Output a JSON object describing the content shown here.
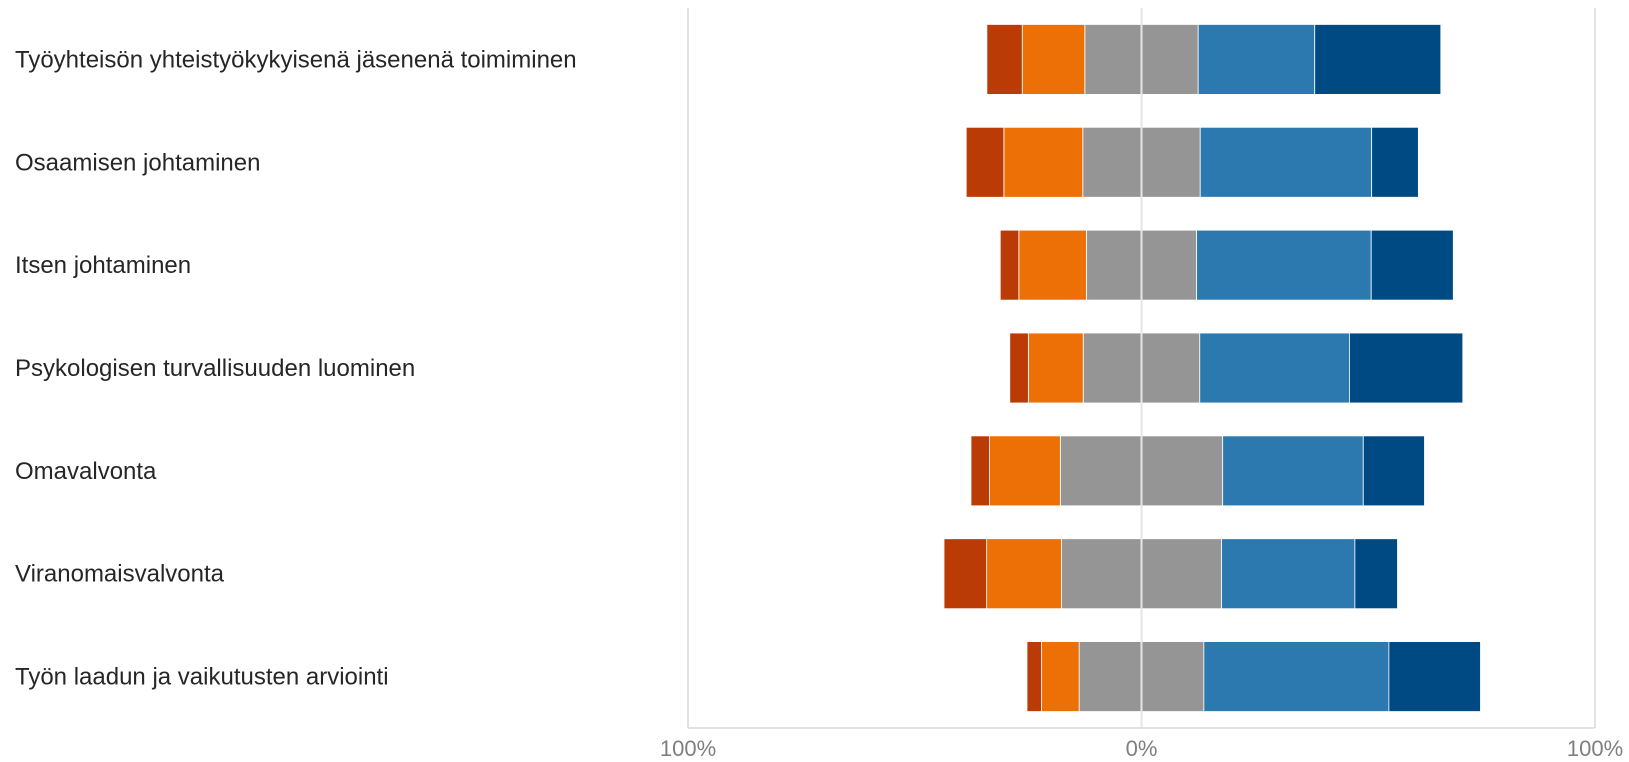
{
  "chart_data": {
    "type": "bar",
    "orientation": "horizontal",
    "stacking": "diverging",
    "categories": [
      "Työyhteisön yhteistyökykyisenä jäsenenä toimiminen",
      "Osaamisen johtaminen",
      "Itsen johtaminen",
      "Psykologisen turvallisuuden luominen",
      "Omavalvonta",
      "Viranomaisvalvonta",
      "Työn laadun ja vaikutusten arviointi"
    ],
    "series": [
      {
        "values": [
          7.8,
          8.3,
          4.1,
          4.1,
          4.1,
          9.4,
          3.2
        ],
        "color": "#bb3b06"
      },
      {
        "values": [
          13.8,
          17.4,
          14.9,
          12.1,
          15.6,
          16.5,
          8.3
        ],
        "color": "#ed7007"
      },
      {
        "values": [
          25.0,
          25.9,
          24.3,
          25.7,
          35.8,
          35.3,
          27.5
        ],
        "color": "#959595"
      },
      {
        "values": [
          25.7,
          37.8,
          38.5,
          33.0,
          31.0,
          29.4,
          40.8
        ],
        "color": "#2c79b0"
      },
      {
        "values": [
          27.8,
          10.3,
          18.1,
          25.0,
          13.5,
          9.4,
          20.2
        ],
        "color": "#004a83"
      }
    ],
    "neutral_series_index": 2,
    "xlim": [
      -100,
      100
    ],
    "xticks": [
      -100,
      0,
      100
    ],
    "xtick_labels": [
      "100%",
      "0%",
      "100%"
    ],
    "grid": true,
    "legend": "none"
  }
}
